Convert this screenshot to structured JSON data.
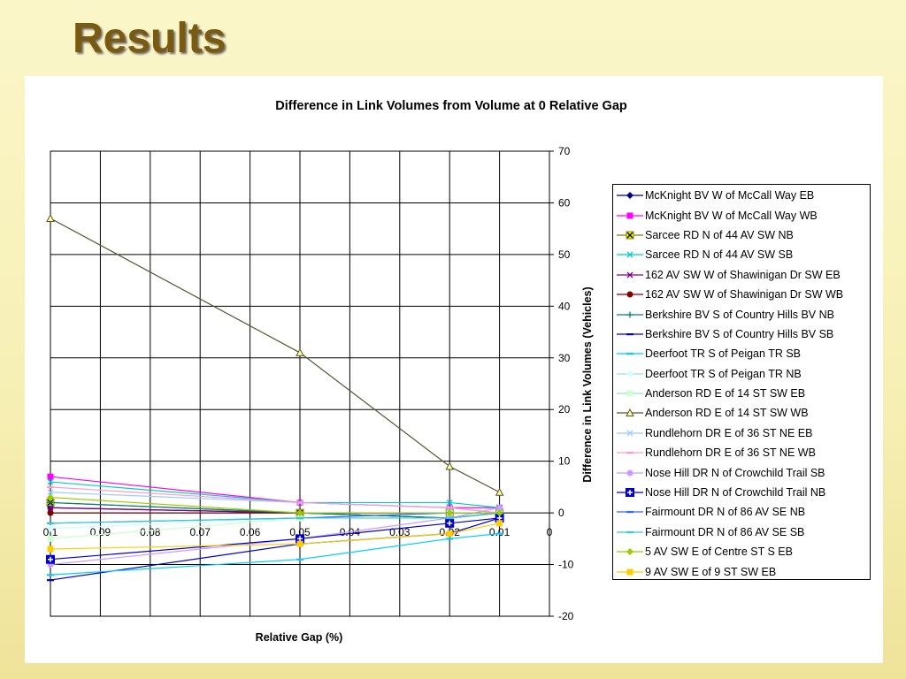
{
  "slide": {
    "title": "Results"
  },
  "chart_data": {
    "type": "line",
    "title": "Difference in Link Volumes from Volume at 0 Relative Gap",
    "xlabel": "Relative Gap (%)",
    "ylabel": "Difference in Link Volumes (Vehicles)",
    "xlim": [
      0.1,
      0
    ],
    "ylim": [
      -20,
      70
    ],
    "x_ticks": [
      "0.1",
      "0.09",
      "0.08",
      "0.07",
      "0.06",
      "0.05",
      "0.04",
      "0.03",
      "0.02",
      "0.01",
      "0"
    ],
    "y_ticks": [
      "70",
      "60",
      "50",
      "40",
      "30",
      "20",
      "10",
      "0",
      "-10",
      "-20"
    ],
    "grid": true,
    "legend_position": "right",
    "x": [
      0.1,
      0.05,
      0.02,
      0.01
    ],
    "series": [
      {
        "name": "McKnight BV W of McCall Way EB",
        "color": "#000080",
        "marker": "diamond",
        "values": [
          1,
          0,
          -1,
          0
        ]
      },
      {
        "name": "McKnight BV W of McCall Way WB",
        "color": "#ff00ff",
        "marker": "square",
        "values": [
          7,
          2,
          1,
          1
        ]
      },
      {
        "name": "Sarcee RD N of 44 AV SW NB",
        "color": "#808000",
        "marker": "x-box",
        "values": [
          2,
          0,
          0,
          0
        ]
      },
      {
        "name": "Sarcee RD N of 44 AV SW SB",
        "color": "#00cccc",
        "marker": "x",
        "values": [
          6,
          2,
          2,
          1
        ]
      },
      {
        "name": "162 AV SW W of Shawinigan Dr SW EB",
        "color": "#800080",
        "marker": "x",
        "values": [
          1,
          0,
          0,
          0
        ]
      },
      {
        "name": "162 AV SW W of Shawinigan Dr SW WB",
        "color": "#800000",
        "marker": "circle",
        "values": [
          0,
          0,
          0,
          0
        ]
      },
      {
        "name": "Berkshire BV S of Country Hills BV NB",
        "color": "#008080",
        "marker": "plus",
        "values": [
          2,
          0,
          -1,
          0
        ]
      },
      {
        "name": "Berkshire BV S of Country Hills BV SB",
        "color": "#0000cc",
        "marker": "dash",
        "values": [
          -13,
          -6,
          -4,
          -1
        ]
      },
      {
        "name": "Deerfoot TR S of Peigan TR SB",
        "color": "#00ccff",
        "marker": "dash",
        "values": [
          -12,
          -9,
          -5,
          -4
        ]
      },
      {
        "name": "Deerfoot TR S of Peigan TR NB",
        "color": "#ccffff",
        "marker": "diamond",
        "values": [
          -3,
          -1,
          0,
          0
        ]
      },
      {
        "name": "Anderson RD E of 14 ST SW EB",
        "color": "#ccffcc",
        "marker": "square",
        "values": [
          -5,
          -1,
          0,
          0
        ]
      },
      {
        "name": "Anderson RD E of 14 ST SW WB",
        "color": "#555533",
        "marker": "triangle",
        "values": [
          57,
          31,
          9,
          4
        ]
      },
      {
        "name": "Rundlehorn DR E of 36 ST NE EB",
        "color": "#99ccff",
        "marker": "x",
        "values": [
          4,
          2,
          1,
          0
        ]
      },
      {
        "name": "Rundlehorn DR E of 36 ST NE WB",
        "color": "#ff99cc",
        "marker": "dash",
        "values": [
          5,
          2,
          1,
          0
        ]
      },
      {
        "name": "Nose Hill DR N of Crowchild Trail SB",
        "color": "#cc99ff",
        "marker": "circle",
        "values": [
          -10,
          -5,
          -1,
          1
        ]
      },
      {
        "name": "Nose Hill DR N of Crowchild Trail NB",
        "color": "#0000cc",
        "marker": "plus-box",
        "values": [
          -9,
          -5,
          -2,
          -1
        ]
      },
      {
        "name": "Fairmount DR N of 86 AV SE NB",
        "color": "#3366ff",
        "marker": "dash",
        "values": [
          -2,
          -1,
          0,
          0
        ]
      },
      {
        "name": "Fairmount DR N of 86 AV SE SB",
        "color": "#33cccc",
        "marker": "dash",
        "values": [
          -2,
          -1,
          -1,
          0
        ]
      },
      {
        "name": "5 AV SW E of Centre ST S EB",
        "color": "#99cc00",
        "marker": "diamond",
        "values": [
          3,
          0,
          0,
          0
        ]
      },
      {
        "name": "9 AV SW E of 9 ST SW EB",
        "color": "#ffcc00",
        "marker": "square",
        "values": [
          -7,
          -6,
          -4,
          -2
        ]
      }
    ]
  }
}
